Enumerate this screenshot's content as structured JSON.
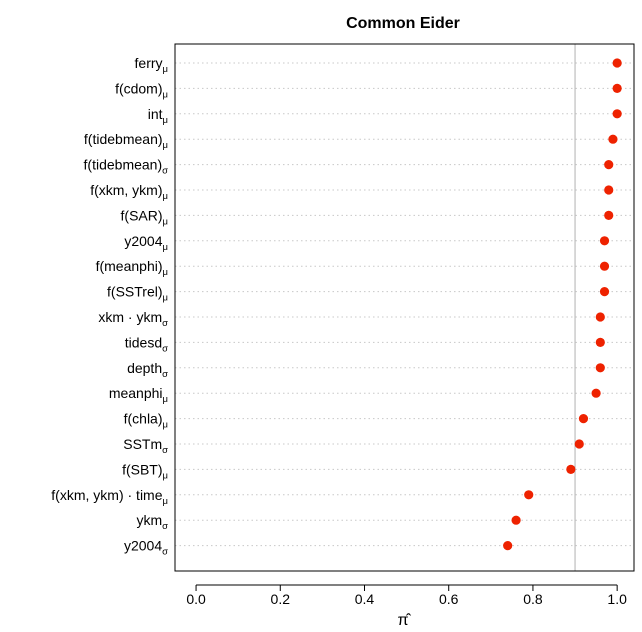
{
  "chart_data": {
    "type": "scatter",
    "title": "Common Eider",
    "xlabel": "π̂",
    "ylabel": "",
    "xlim": [
      -0.05,
      1.04
    ],
    "xticks": [
      "0.0",
      "0.2",
      "0.4",
      "0.6",
      "0.8",
      "1.0"
    ],
    "xtick_values": [
      0,
      0.2,
      0.4,
      0.6,
      0.8,
      1.0
    ],
    "reference_line": 0.9,
    "grid": "horizontal dotted",
    "point_color": "#ee2200",
    "reference_line_color": "#bebebe",
    "categories": [
      {
        "main": "ferry",
        "sub": "μ"
      },
      {
        "main": "f(cdom)",
        "sub": "μ"
      },
      {
        "main": "int",
        "sub": "μ"
      },
      {
        "main": "f(tidebmean)",
        "sub": "μ"
      },
      {
        "main": "f(tidebmean)",
        "sub": "σ"
      },
      {
        "main": "f(xkm, ykm)",
        "sub": "μ"
      },
      {
        "main": "f(SAR)",
        "sub": "μ"
      },
      {
        "main": "y2004",
        "sub": "μ"
      },
      {
        "main": "f(meanphi)",
        "sub": "μ"
      },
      {
        "main": "f(SSTrel)",
        "sub": "μ"
      },
      {
        "main": "xkm · ykm",
        "sub": "σ"
      },
      {
        "main": "tidesd",
        "sub": "σ"
      },
      {
        "main": "depth",
        "sub": "σ"
      },
      {
        "main": "meanphi",
        "sub": "μ"
      },
      {
        "main": "f(chla)",
        "sub": "μ"
      },
      {
        "main": "SSTm",
        "sub": "σ"
      },
      {
        "main": "f(SBT)",
        "sub": "μ"
      },
      {
        "main": "f(xkm, ykm) · time",
        "sub": "μ"
      },
      {
        "main": "ykm",
        "sub": "σ"
      },
      {
        "main": "y2004",
        "sub": "σ"
      }
    ],
    "values": [
      1.0,
      1.0,
      1.0,
      0.99,
      0.98,
      0.98,
      0.98,
      0.97,
      0.97,
      0.97,
      0.96,
      0.96,
      0.96,
      0.95,
      0.92,
      0.91,
      0.89,
      0.79,
      0.76,
      0.74
    ]
  }
}
